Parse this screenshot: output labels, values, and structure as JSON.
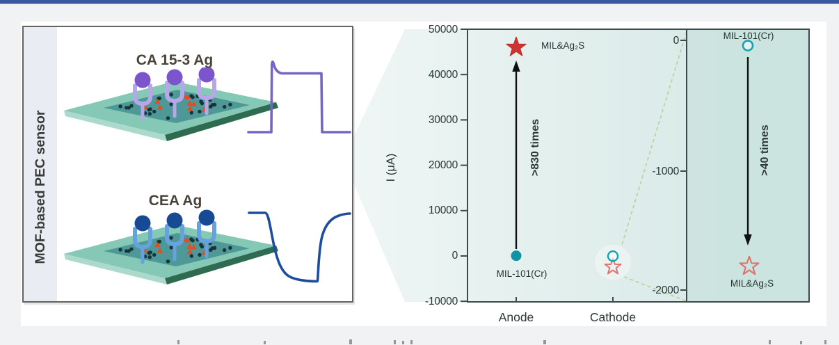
{
  "figure": {
    "side_label": "MOF-based PEC sensor",
    "schematic_top": {
      "label": "CA 15-3 Ag"
    },
    "schematic_bottom": {
      "label": "CEA Ag"
    }
  },
  "chart": {
    "ylabel": "I (μA)",
    "ytick_labels": [
      "50000",
      "40000",
      "30000",
      "20000",
      "10000",
      "0",
      "-10000"
    ],
    "x_labels": [
      "Anode",
      "Cathode"
    ],
    "anode": {
      "top_marker_label": "MIL&Ag₂S",
      "bottom_marker_label": "MIL-101(Cr)",
      "arrow_label": ">830 times"
    },
    "inset": {
      "ytick_labels": [
        "0",
        "-1000",
        "-2000"
      ],
      "top_marker_label": "MIL-101(Cr)",
      "bottom_marker_label": "MIL&Ag₂S",
      "arrow_label": ">40 times"
    }
  },
  "chart_data": {
    "type": "scatter",
    "ylabel": "I (μA)",
    "categories": [
      "Anode",
      "Cathode"
    ],
    "ylim": [
      -10000,
      50000
    ],
    "yticks": [
      50000,
      40000,
      30000,
      20000,
      10000,
      0,
      -10000
    ],
    "grid": false,
    "series": [
      {
        "name": "MIL&Ag₂S",
        "marker": "star",
        "color": "#d13430",
        "open_color": "#dd7470",
        "points": [
          {
            "category": "Anode",
            "value": 46000,
            "style": "filled"
          },
          {
            "category": "Cathode",
            "value": -1800,
            "style": "open"
          }
        ]
      },
      {
        "name": "MIL-101(Cr)",
        "marker": "circle",
        "color": "#1292a6",
        "open_color": "#12a3b4",
        "points": [
          {
            "category": "Anode",
            "value": 50,
            "style": "filled"
          },
          {
            "category": "Cathode",
            "value": -40,
            "style": "open"
          }
        ]
      }
    ],
    "annotations": [
      {
        "text": ">830 times",
        "type": "arrow-up",
        "at": "Anode"
      },
      {
        "text": ">40 times",
        "type": "arrow-down",
        "at": "inset"
      }
    ],
    "inset": {
      "ylim": [
        -2000,
        0
      ],
      "yticks": [
        0,
        -1000,
        -2000
      ],
      "points": [
        {
          "name": "MIL-101(Cr)",
          "value": -40,
          "marker": "open-circle"
        },
        {
          "name": "MIL&Ag₂S",
          "value": -1800,
          "marker": "open-star"
        }
      ]
    }
  },
  "colors": {
    "accent_bar": "#3a57a0",
    "star_red": "#d13430",
    "open_star_red": "#dd7470",
    "teal_marker": "#1292a6",
    "open_teal": "#12a3b4",
    "purple_curve": "#7765c5",
    "blue_curve": "#1d4e9d",
    "antibody_purple": "#7a55cc",
    "antibody_navy": "#164a95",
    "plate_teal": "#85c8b5",
    "dashed_green": "#bed09c",
    "axis": "#3c4a49"
  }
}
